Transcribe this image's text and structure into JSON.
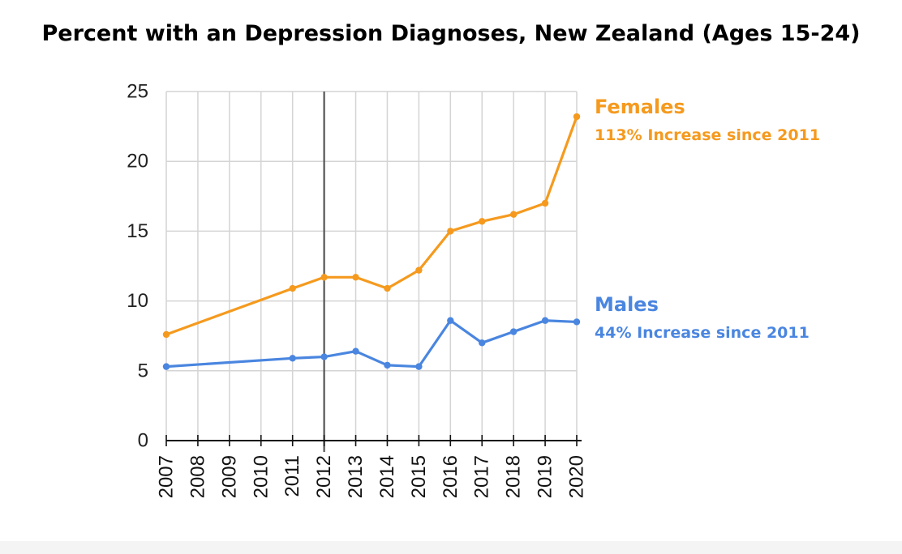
{
  "chart_data": {
    "type": "line",
    "title": "Percent with an Depression Diagnoses, New Zealand (Ages 15-24)",
    "xlabel": "",
    "ylabel": "",
    "x": [
      2007,
      2008,
      2009,
      2010,
      2011,
      2012,
      2013,
      2014,
      2015,
      2016,
      2017,
      2018,
      2019,
      2020
    ],
    "x_tick_labels": [
      "2007",
      "2008",
      "2009",
      "2010",
      "2011",
      "2012",
      "2013",
      "2014",
      "2015",
      "2016",
      "2017",
      "2018",
      "2019",
      "2020"
    ],
    "y_ticks": [
      0,
      5,
      10,
      15,
      20,
      25
    ],
    "ylim": [
      0,
      25
    ],
    "grid": true,
    "reference_line_x": 2012,
    "series": [
      {
        "name": "Females",
        "color": "#f59a1e",
        "x": [
          2007,
          2011,
          2012,
          2013,
          2014,
          2015,
          2016,
          2017,
          2018,
          2019,
          2020
        ],
        "values": [
          7.6,
          10.9,
          11.7,
          11.7,
          10.9,
          12.2,
          15.0,
          15.7,
          16.2,
          17.0,
          23.2
        ],
        "annotation": "113% Increase since 2011"
      },
      {
        "name": "Males",
        "color": "#4a86e0",
        "x": [
          2007,
          2011,
          2012,
          2013,
          2014,
          2015,
          2016,
          2017,
          2018,
          2019,
          2020
        ],
        "values": [
          5.3,
          5.9,
          6.0,
          6.4,
          5.4,
          5.3,
          8.6,
          7.0,
          7.8,
          8.6,
          8.5
        ],
        "annotation": "44% Increase since 2011"
      }
    ]
  }
}
